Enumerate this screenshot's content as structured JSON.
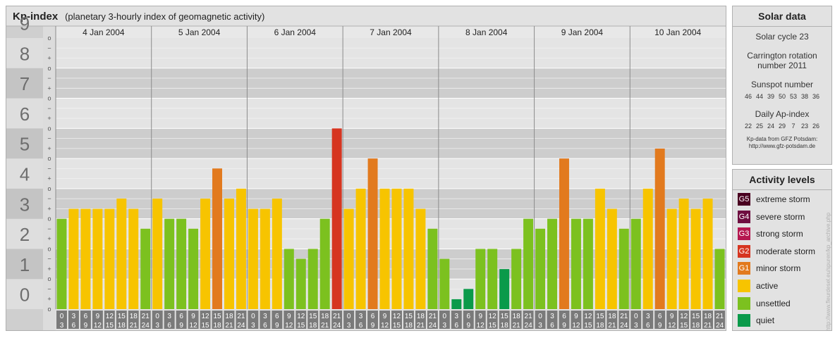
{
  "title": "Kp-index",
  "subtitle": "(planetary 3-hourly index of geomagnetic activity)",
  "chart_data": {
    "type": "bar",
    "y_range": [
      0,
      9
    ],
    "y_ticks": [
      "0",
      "1",
      "2",
      "3",
      "4",
      "5",
      "6",
      "7",
      "8",
      "9"
    ],
    "sub_ticks": [
      "o",
      "+",
      "−"
    ],
    "days": [
      "4 Jan 2004",
      "5 Jan 2004",
      "6 Jan 2004",
      "7 Jan 2004",
      "8 Jan 2004",
      "9 Jan 2004",
      "10 Jan 2004"
    ],
    "interval_top": [
      "0",
      "3",
      "6",
      "9",
      "12",
      "15",
      "18",
      "21"
    ],
    "interval_bottom": [
      "3",
      "6",
      "9",
      "12",
      "15",
      "18",
      "21",
      "24"
    ],
    "values": [
      3.0,
      3.33,
      3.33,
      3.33,
      3.33,
      3.67,
      3.33,
      2.67,
      3.67,
      3.0,
      3.0,
      2.67,
      3.67,
      4.67,
      3.67,
      4.0,
      3.33,
      3.33,
      3.67,
      2.0,
      1.67,
      2.0,
      3.0,
      6.0,
      3.33,
      4.0,
      5.0,
      4.0,
      4.0,
      4.0,
      3.33,
      2.67,
      1.67,
      0.33,
      0.67,
      2.0,
      2.0,
      1.33,
      2.0,
      3.0,
      2.67,
      3.0,
      5.0,
      3.0,
      3.0,
      4.0,
      3.33,
      2.67,
      3.0,
      4.0,
      5.33,
      3.33,
      3.67,
      3.33,
      3.67,
      2.0
    ],
    "colors": {
      "quiet": "#0a9a4a",
      "unsettled": "#7cc11f",
      "active": "#f7c400",
      "minor": "#e27a1e",
      "moderate": "#d63520",
      "strong": "#b5174f",
      "severe": "#6e0e40",
      "extreme": "#4a0020"
    },
    "grid": true
  },
  "solar": {
    "heading": "Solar data",
    "cycle": "Solar cycle 23",
    "carrington_line1": "Carrington rotation",
    "carrington_line2": "number 2011",
    "sunspot_label": "Sunspot number",
    "sunspot_values": [
      "46",
      "44",
      "39",
      "50",
      "53",
      "38",
      "36"
    ],
    "ap_label": "Daily Ap-index",
    "ap_values": [
      "22",
      "25",
      "24",
      "29",
      "7",
      "23",
      "26"
    ],
    "credit1": "Kp-data from GFZ Potsdam:",
    "credit2": "http://www.gfz-potsdam.de"
  },
  "levels": {
    "heading": "Activity levels",
    "items": [
      {
        "code": "G5",
        "label": "extreme storm",
        "color": "#4a0020"
      },
      {
        "code": "G4",
        "label": "severe storm",
        "color": "#6e0e40"
      },
      {
        "code": "G3",
        "label": "strong storm",
        "color": "#b5174f"
      },
      {
        "code": "G2",
        "label": "moderate storm",
        "color": "#d63520"
      },
      {
        "code": "G1",
        "label": "minor storm",
        "color": "#e27a1e"
      },
      {
        "code": "",
        "label": "active",
        "color": "#f7c400"
      },
      {
        "code": "",
        "label": "unsettled",
        "color": "#7cc11f"
      },
      {
        "code": "",
        "label": "quiet",
        "color": "#0a9a4a"
      }
    ]
  },
  "watermark": "http://www.fleurdesel.eu/spuren/kp_archive.php"
}
